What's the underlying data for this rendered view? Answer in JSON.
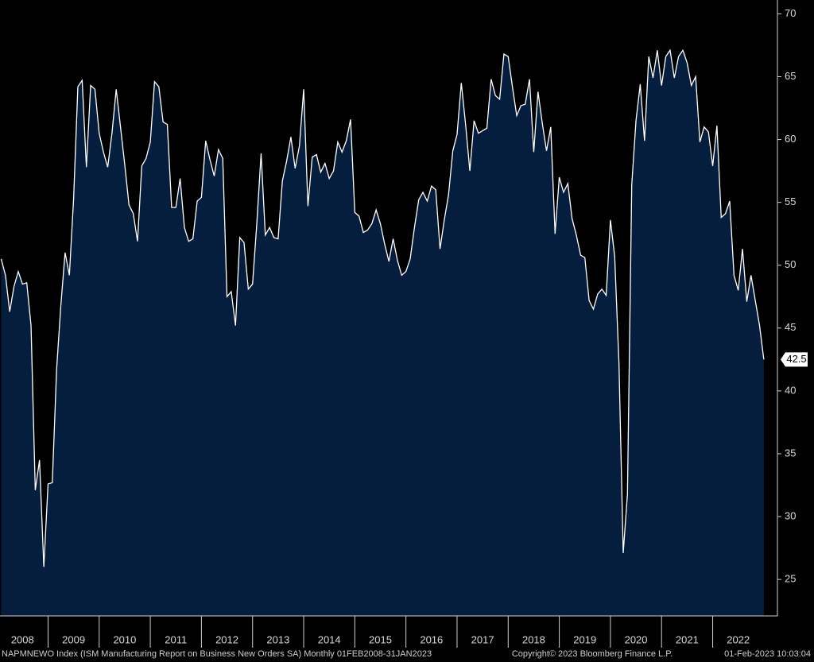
{
  "chart_data": {
    "type": "area",
    "series": [
      {
        "name": "NAPMNEWO Index",
        "color": "#ffffff",
        "fill": "#061e3d",
        "x": [
          2008.083,
          2008.167,
          2008.25,
          2008.333,
          2008.417,
          2008.5,
          2008.583,
          2008.667,
          2008.75,
          2008.833,
          2008.917,
          2009,
          2009.083,
          2009.167,
          2009.25,
          2009.333,
          2009.417,
          2009.5,
          2009.583,
          2009.667,
          2009.75,
          2009.833,
          2009.917,
          2010,
          2010.083,
          2010.167,
          2010.25,
          2010.333,
          2010.417,
          2010.5,
          2010.583,
          2010.667,
          2010.75,
          2010.833,
          2010.917,
          2011,
          2011.083,
          2011.167,
          2011.25,
          2011.333,
          2011.417,
          2011.5,
          2011.583,
          2011.667,
          2011.75,
          2011.833,
          2011.917,
          2012,
          2012.083,
          2012.167,
          2012.25,
          2012.333,
          2012.417,
          2012.5,
          2012.583,
          2012.667,
          2012.75,
          2012.833,
          2012.917,
          2013,
          2013.083,
          2013.167,
          2013.25,
          2013.333,
          2013.417,
          2013.5,
          2013.583,
          2013.667,
          2013.75,
          2013.833,
          2013.917,
          2014,
          2014.083,
          2014.167,
          2014.25,
          2014.333,
          2014.417,
          2014.5,
          2014.583,
          2014.667,
          2014.75,
          2014.833,
          2014.917,
          2015,
          2015.083,
          2015.167,
          2015.25,
          2015.333,
          2015.417,
          2015.5,
          2015.583,
          2015.667,
          2015.75,
          2015.833,
          2015.917,
          2016,
          2016.083,
          2016.167,
          2016.25,
          2016.333,
          2016.417,
          2016.5,
          2016.583,
          2016.667,
          2016.75,
          2016.833,
          2016.917,
          2017,
          2017.083,
          2017.167,
          2017.25,
          2017.333,
          2017.417,
          2017.5,
          2017.583,
          2017.667,
          2017.75,
          2017.833,
          2017.917,
          2018,
          2018.083,
          2018.167,
          2018.25,
          2018.333,
          2018.417,
          2018.5,
          2018.583,
          2018.667,
          2018.75,
          2018.833,
          2018.917,
          2019,
          2019.083,
          2019.167,
          2019.25,
          2019.333,
          2019.417,
          2019.5,
          2019.583,
          2019.667,
          2019.75,
          2019.833,
          2019.917,
          2020,
          2020.083,
          2020.167,
          2020.25,
          2020.333,
          2020.417,
          2020.5,
          2020.583,
          2020.667,
          2020.75,
          2020.833,
          2020.917,
          2021,
          2021.083,
          2021.167,
          2021.25,
          2021.333,
          2021.417,
          2021.5,
          2021.583,
          2021.667,
          2021.75,
          2021.833,
          2021.917,
          2022,
          2022.083,
          2022.167,
          2022.25,
          2022.333,
          2022.417,
          2022.5,
          2022.583,
          2022.667,
          2022.75,
          2022.833,
          2022.917,
          2023
        ],
        "values": [
          50.5,
          49.2,
          46.3,
          48.3,
          49.5,
          48.5,
          48.6,
          45.2,
          32.1,
          34.5,
          26,
          32.6,
          32.7,
          41.7,
          46.8,
          51,
          49.2,
          55.3,
          64.2,
          64.7,
          57.8,
          64.3,
          64,
          60.5,
          59,
          57.8,
          60.5,
          64,
          61,
          58,
          54.8,
          54.1,
          51.9,
          57.9,
          58.5,
          59.8,
          64.6,
          64.2,
          61.4,
          61.2,
          54.6,
          54.6,
          56.9,
          53,
          51.9,
          52.1,
          55.1,
          55.4,
          59.9,
          58.4,
          57.1,
          59.2,
          58.5,
          47.5,
          47.9,
          45.2,
          52.2,
          51.8,
          48.1,
          48.5,
          53.3,
          58.9,
          52.4,
          53,
          52.2,
          52.1,
          56.7,
          58.3,
          60.2,
          57.7,
          59.5,
          64,
          54.7,
          58.6,
          58.8,
          57.4,
          58.1,
          56.9,
          57.5,
          59.8,
          59,
          59.9,
          61.6,
          54.2,
          53.9,
          52.6,
          52.8,
          53.3,
          54.4,
          53.3,
          51.7,
          50.3,
          52.1,
          50.4,
          49.2,
          49.5,
          50.5,
          53,
          55.2,
          55.8,
          55.1,
          56.3,
          56,
          51.3,
          53.6,
          55.6,
          59.1,
          60.4,
          64.5,
          61.2,
          57.5,
          61.5,
          60.5,
          60.7,
          60.9,
          64.8,
          63.5,
          63.2,
          66.8,
          66.6,
          64.2,
          61.9,
          62.7,
          62.8,
          64.8,
          59,
          63.8,
          61.3,
          59.1,
          61,
          52.5,
          57,
          55.8,
          56.5,
          53.7,
          52.4,
          50.8,
          50.6,
          47.2,
          46.5,
          47.7,
          48.1,
          47.6,
          53.6,
          50.7,
          42.2,
          27.1,
          31.8,
          56.4,
          61.5,
          64.4,
          59.9,
          66.6,
          64.9,
          67.1,
          64.3,
          66.6,
          67.1,
          64.9,
          66.6,
          67.1,
          66.1,
          64.3,
          65,
          59.8,
          61,
          60.6,
          57.9,
          61.1,
          53.8,
          54.1,
          55.1,
          49.2,
          48,
          51.3,
          47.1,
          49.2,
          47.2,
          45.2,
          42.5
        ],
        "last_value_label": "42.5"
      }
    ],
    "xlim": [
      2008.06,
      2023.22
    ],
    "xticks": [
      {
        "value": 2008.5,
        "label": "2008"
      },
      {
        "value": 2009.5,
        "label": "2009"
      },
      {
        "value": 2010.5,
        "label": "2010"
      },
      {
        "value": 2011.5,
        "label": "2011"
      },
      {
        "value": 2012.5,
        "label": "2012"
      },
      {
        "value": 2013.5,
        "label": "2013"
      },
      {
        "value": 2014.5,
        "label": "2014"
      },
      {
        "value": 2015.5,
        "label": "2015"
      },
      {
        "value": 2016.5,
        "label": "2016"
      },
      {
        "value": 2017.5,
        "label": "2017"
      },
      {
        "value": 2018.5,
        "label": "2018"
      },
      {
        "value": 2019.5,
        "label": "2019"
      },
      {
        "value": 2020.5,
        "label": "2020"
      },
      {
        "value": 2021.5,
        "label": "2021"
      },
      {
        "value": 2022.5,
        "label": "2022"
      }
    ],
    "ylim": [
      22.1,
      71.1
    ],
    "yticks": [
      25,
      30,
      35,
      40,
      45,
      50,
      55,
      60,
      65,
      70
    ],
    "footer": {
      "left": "NAPMNEWO Index (ISM Manufacturing Report on Business New Orders SA)  Monthly 01FEB2008-31JAN2023",
      "center": "Copyright© 2023 Bloomberg Finance L.P.",
      "right": "01-Feb-2023 10:03:04"
    }
  }
}
